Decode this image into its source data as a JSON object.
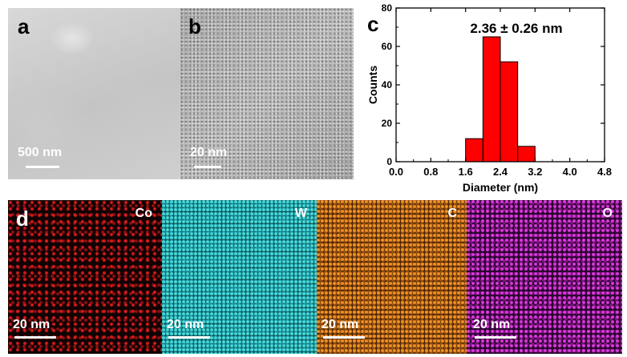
{
  "panels": {
    "a": {
      "label": "a",
      "scale_bar": "500 nm"
    },
    "b": {
      "label": "b",
      "scale_bar": "20 nm"
    },
    "c": {
      "label": "c"
    },
    "d": {
      "label": "d"
    }
  },
  "eds_maps": [
    {
      "element": "Co",
      "scale_bar": "20 nm",
      "color": "#e11a1a"
    },
    {
      "element": "W",
      "scale_bar": "20 nm",
      "color": "#33d6d6"
    },
    {
      "element": "C",
      "scale_bar": "20 nm",
      "color": "#f08c1e"
    },
    {
      "element": "O",
      "scale_bar": "20 nm",
      "color": "#d23cd2"
    }
  ],
  "chart_data": {
    "type": "bar",
    "annotation": "2.36 ± 0.26 nm",
    "xlabel": "Diameter (nm)",
    "ylabel": "Counts",
    "xlim": [
      0.0,
      4.8
    ],
    "ylim": [
      0,
      80
    ],
    "x_ticks": [
      "0.0",
      "0.8",
      "1.6",
      "2.4",
      "3.2",
      "4.0",
      "4.8"
    ],
    "y_ticks": [
      "0",
      "20",
      "40",
      "60",
      "80"
    ],
    "bins": [
      {
        "start": 1.6,
        "end": 2.0,
        "value": 12
      },
      {
        "start": 2.0,
        "end": 2.4,
        "value": 65
      },
      {
        "start": 2.4,
        "end": 2.8,
        "value": 52
      },
      {
        "start": 2.8,
        "end": 3.2,
        "value": 8
      }
    ],
    "bar_color": "#ff0000",
    "grid": false
  }
}
